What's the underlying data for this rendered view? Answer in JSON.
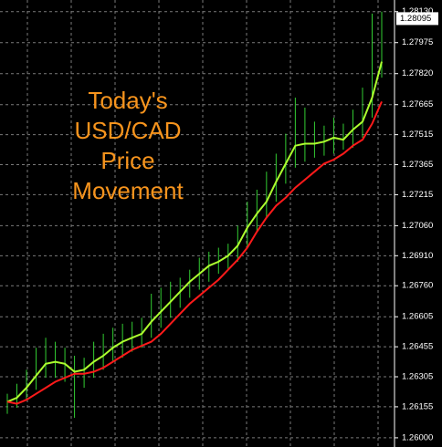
{
  "chart_data": {
    "type": "price-bars",
    "title_lines": [
      "Today's",
      "USD/CAD",
      "Price",
      "Movement"
    ],
    "title_color": "#f7941d",
    "ylim": [
      1.25954,
      1.28188
    ],
    "yticks": [
      {
        "value": 1.26,
        "label": "1.26000"
      },
      1.26155,
      1.26305,
      1.26455,
      1.26605,
      {
        "value": 1.2676,
        "label": "1.26760"
      },
      {
        "value": 1.2691,
        "label": "1.26910"
      },
      {
        "value": 1.2706,
        "label": "1.27060"
      },
      1.27215,
      1.27365,
      1.27515,
      1.27665,
      {
        "value": 1.2782,
        "label": "1.27820"
      },
      1.27975,
      {
        "value": 1.2813,
        "label": "1.28130"
      }
    ],
    "grid": true,
    "current_price": 1.28095,
    "bars": {
      "color": "#32cd32",
      "high": [
        1.2622,
        1.2627,
        1.2634,
        1.2645,
        1.265,
        1.2648,
        1.2645,
        1.2641,
        1.264,
        1.2648,
        1.2652,
        1.2655,
        1.2657,
        1.2658,
        1.266,
        1.2672,
        1.2675,
        1.2678,
        1.268,
        1.2684,
        1.269,
        1.2693,
        1.2695,
        1.2697,
        1.2706,
        1.2718,
        1.2724,
        1.2733,
        1.2742,
        1.2752,
        1.277,
        1.2765,
        1.2758,
        1.2756,
        1.276,
        1.2757,
        1.2764,
        1.2775,
        1.2812,
        1.2813
      ],
      "low": [
        1.2612,
        1.2615,
        1.2619,
        1.2624,
        1.263,
        1.263,
        1.2628,
        1.261,
        1.2625,
        1.263,
        1.2634,
        1.2638,
        1.264,
        1.2643,
        1.2645,
        1.265,
        1.2655,
        1.266,
        1.2665,
        1.267,
        1.2674,
        1.2678,
        1.2682,
        1.2684,
        1.2688,
        1.2695,
        1.2703,
        1.271,
        1.2718,
        1.2727,
        1.2735,
        1.2738,
        1.274,
        1.2741,
        1.2742,
        1.2744,
        1.2745,
        1.275,
        1.276,
        1.278
      ]
    },
    "lines": [
      {
        "color": "#adff2f",
        "values": [
          1.2618,
          1.262,
          1.2625,
          1.2631,
          1.2637,
          1.2638,
          1.2637,
          1.2633,
          1.2634,
          1.2638,
          1.2641,
          1.2645,
          1.2648,
          1.265,
          1.2652,
          1.2658,
          1.2663,
          1.2668,
          1.2673,
          1.2678,
          1.2682,
          1.2686,
          1.2688,
          1.2691,
          1.2696,
          1.2705,
          1.2712,
          1.2718,
          1.2728,
          1.2737,
          1.2746,
          1.2747,
          1.2747,
          1.2748,
          1.275,
          1.2749,
          1.2754,
          1.2758,
          1.277,
          1.2788
        ]
      },
      {
        "color": "#ff1a1a",
        "values": [
          1.2618,
          1.2617,
          1.2619,
          1.2622,
          1.2625,
          1.2628,
          1.263,
          1.2632,
          1.2632,
          1.2633,
          1.2635,
          1.2638,
          1.2641,
          1.2644,
          1.2646,
          1.2648,
          1.2652,
          1.2657,
          1.2662,
          1.2667,
          1.2671,
          1.2675,
          1.2679,
          1.2684,
          1.2689,
          1.2695,
          1.2703,
          1.271,
          1.2716,
          1.272,
          1.2725,
          1.2729,
          1.2733,
          1.2737,
          1.2739,
          1.2742,
          1.2746,
          1.2749,
          1.2757,
          1.2768
        ]
      }
    ]
  }
}
